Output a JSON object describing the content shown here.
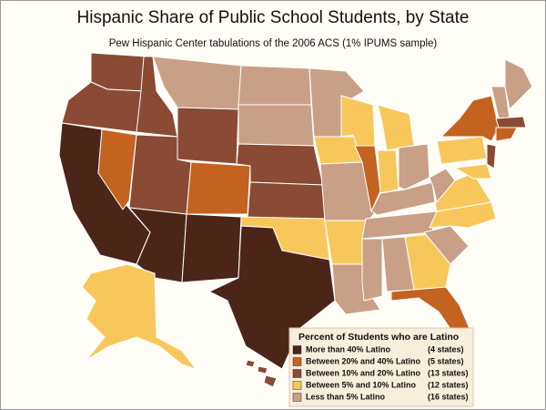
{
  "title": "Hispanic Share of Public School Students, by State",
  "subtitle": "Pew Hispanic Center tabulations of the 2006 ACS (1% IPUMS sample)",
  "legend": {
    "title": "Percent of Students who are Latino",
    "items": [
      {
        "label": "More than 40% Latino",
        "count": "(4 states)",
        "color": "#4b2618"
      },
      {
        "label": "Between 20%  and 40% Latino",
        "count": "(5 states)",
        "color": "#c4621f"
      },
      {
        "label": "Between 10% and 20% Latino",
        "count": "(13 states)",
        "color": "#8a4a33"
      },
      {
        "label": "Between 5% and 10% Latino",
        "count": "(12 states)",
        "color": "#f8c75c"
      },
      {
        "label": "Less than 5% Latino",
        "count": "(16 states)",
        "color": "#c9a086"
      }
    ]
  }
}
